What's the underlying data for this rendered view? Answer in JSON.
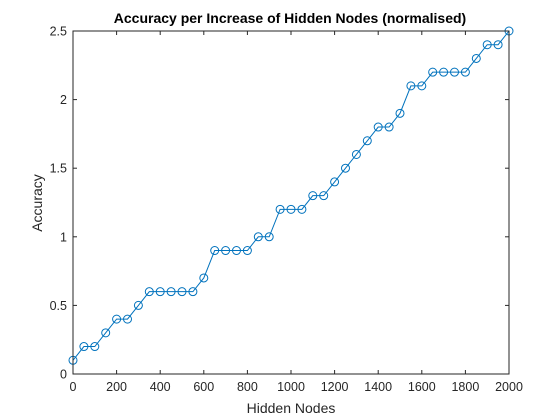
{
  "chart_data": {
    "type": "line",
    "title": "Accuracy per Increase of Hidden Nodes (normalised)",
    "xlabel": "Hidden Nodes",
    "ylabel": "Accuracy",
    "xlim": [
      0,
      2000
    ],
    "ylim": [
      0,
      2.5
    ],
    "xticks": [
      0,
      200,
      400,
      600,
      800,
      1000,
      1200,
      1400,
      1600,
      1800,
      2000
    ],
    "yticks": [
      0,
      0.5,
      1,
      1.5,
      2,
      2.5
    ],
    "xtick_labels": [
      "0",
      "200",
      "400",
      "600",
      "800",
      "1000",
      "1200",
      "1400",
      "1600",
      "1800",
      "2000"
    ],
    "ytick_labels": [
      "0",
      "0.5",
      "1",
      "1.5",
      "2",
      "2.5"
    ],
    "grid": false,
    "marker": "circle",
    "color": "#0072bd",
    "series": [
      {
        "x": [
          0,
          50,
          100,
          150,
          200,
          250,
          300,
          350,
          400,
          450,
          500,
          550,
          600,
          650,
          700,
          750,
          800,
          850,
          900,
          950,
          1000,
          1050,
          1100,
          1150,
          1200,
          1250,
          1300,
          1350,
          1400,
          1450,
          1500,
          1550,
          1600,
          1650,
          1700,
          1750,
          1800,
          1850,
          1900,
          1950,
          2000
        ],
        "values": [
          0.1,
          0.2,
          0.2,
          0.3,
          0.4,
          0.4,
          0.5,
          0.6,
          0.6,
          0.6,
          0.6,
          0.6,
          0.7,
          0.9,
          0.9,
          0.9,
          0.9,
          1.0,
          1.0,
          1.2,
          1.2,
          1.2,
          1.3,
          1.3,
          1.4,
          1.5,
          1.6,
          1.7,
          1.8,
          1.8,
          1.9,
          2.1,
          2.1,
          2.2,
          2.2,
          2.2,
          2.2,
          2.3,
          2.4,
          2.4,
          2.5
        ]
      }
    ]
  }
}
